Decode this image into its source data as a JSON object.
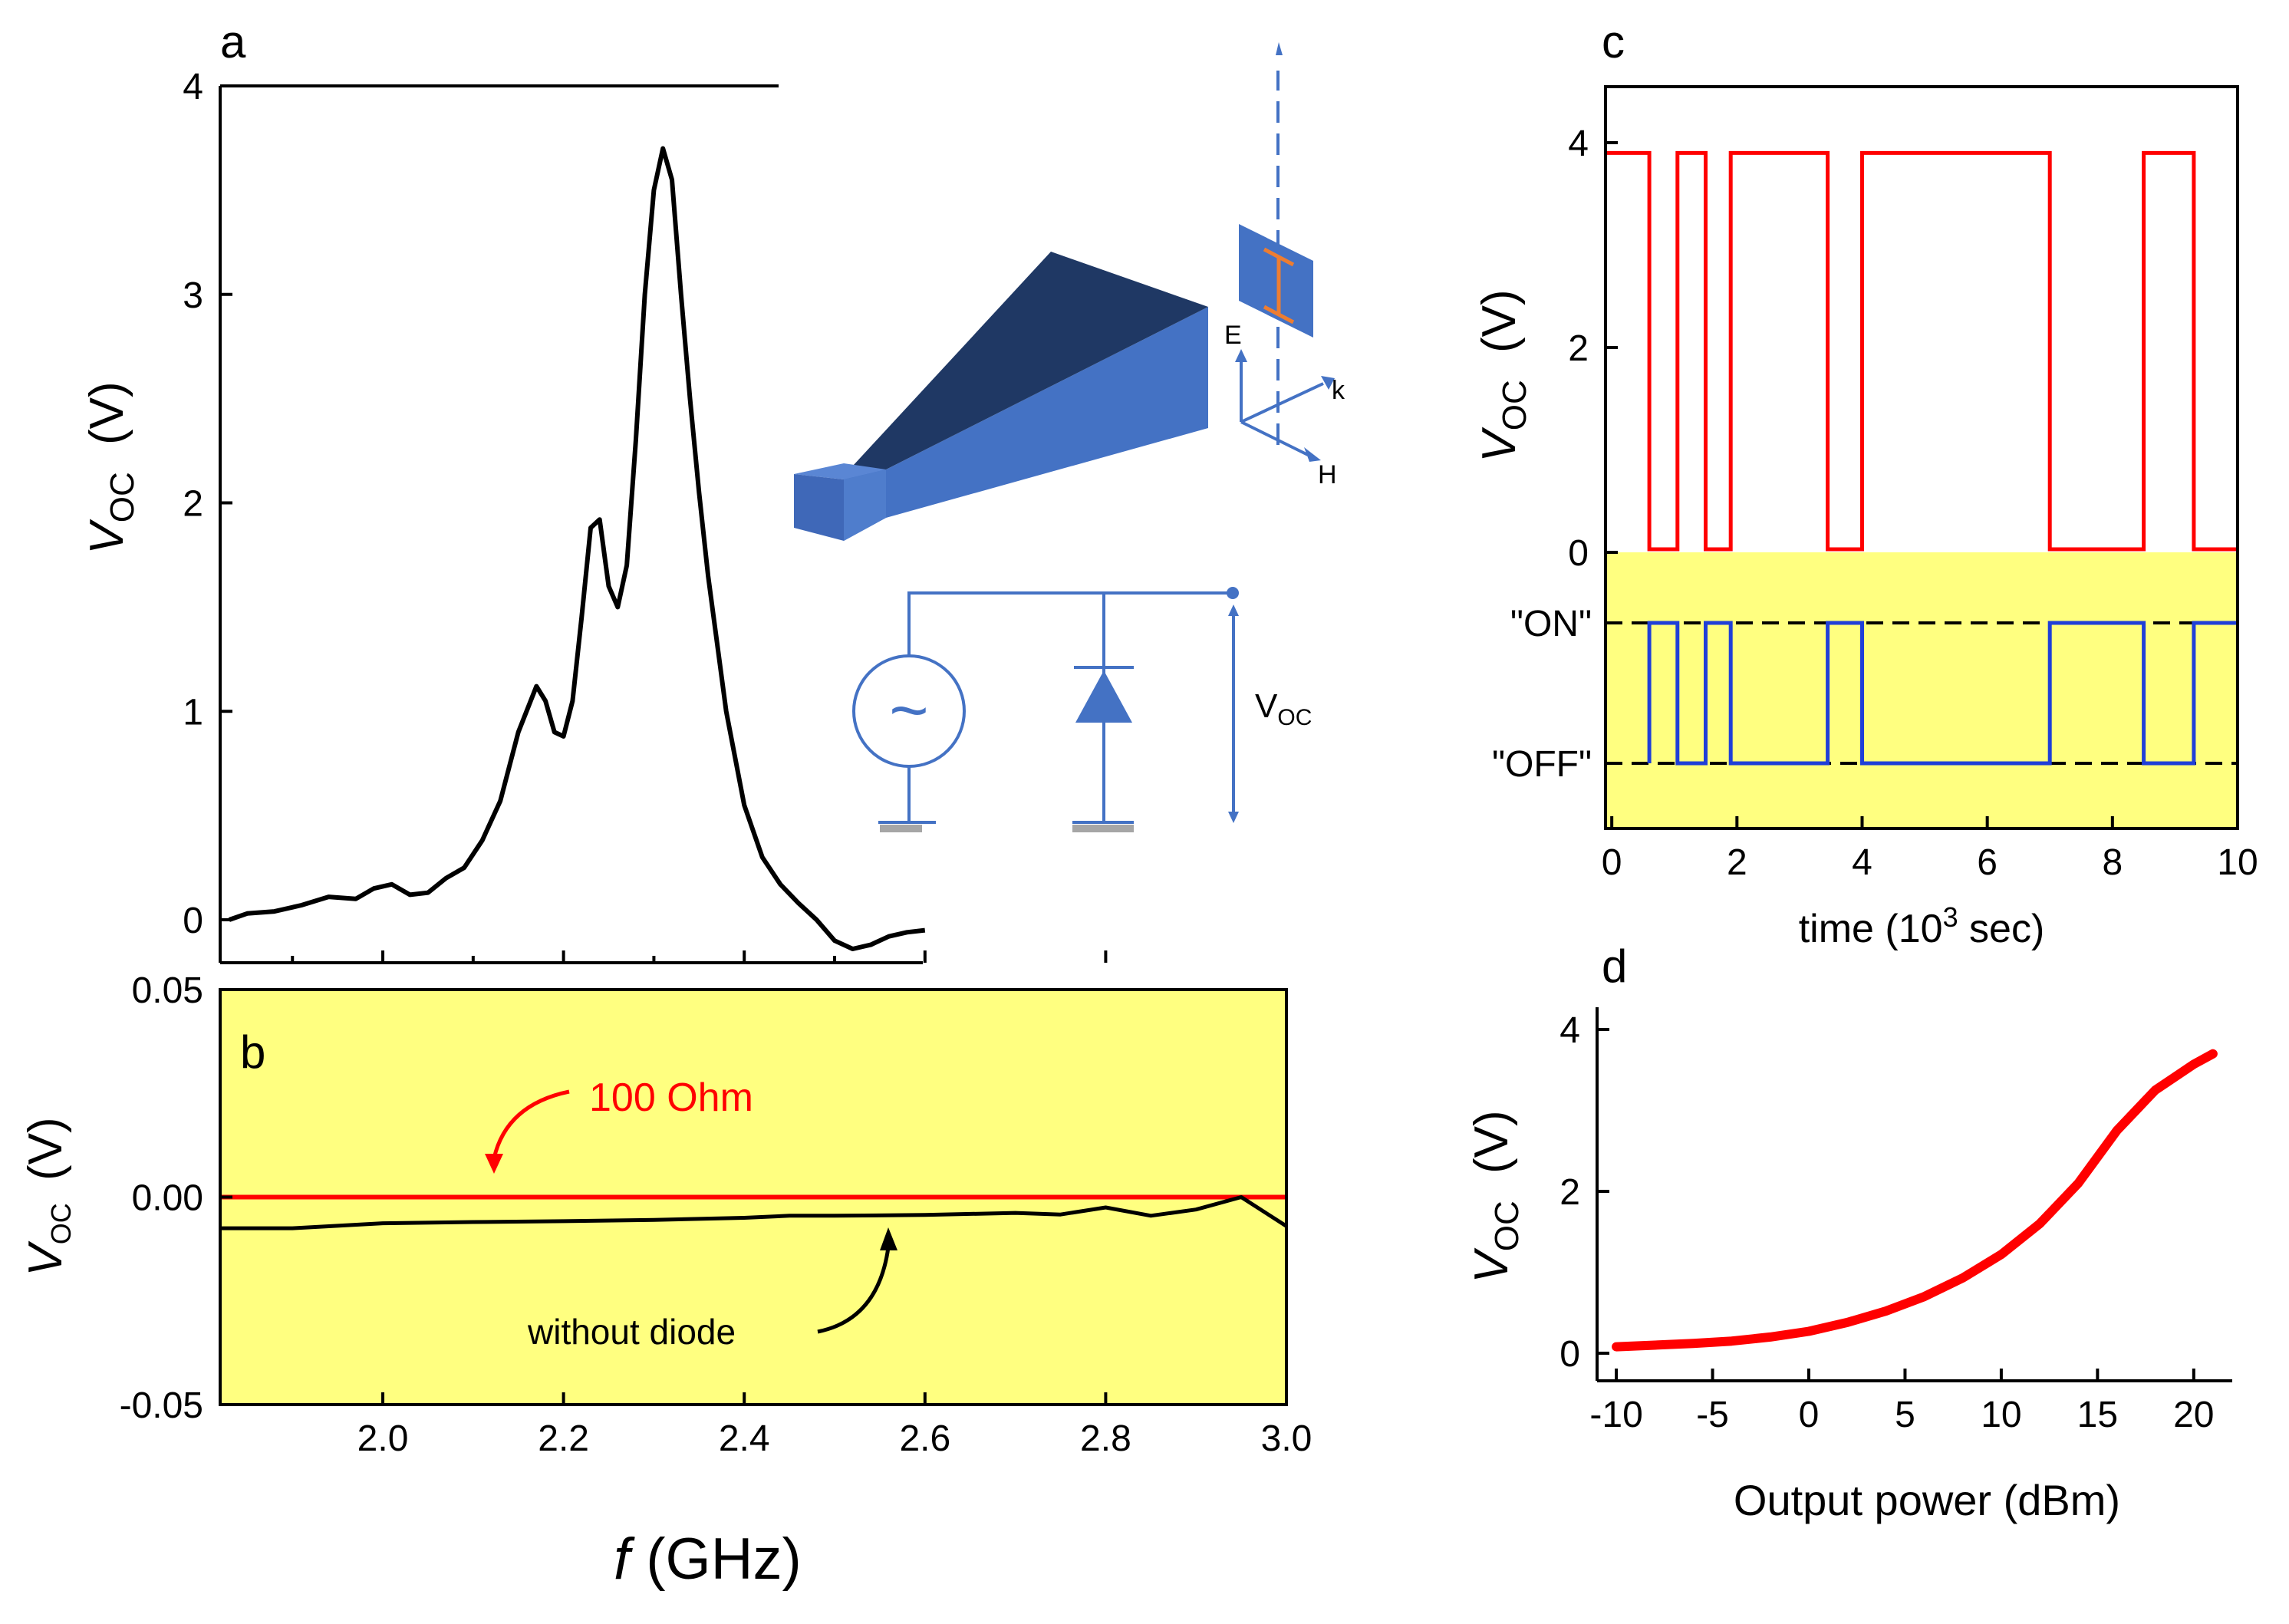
{
  "colors": {
    "red": "#ff0000",
    "blue": "#1f3fd8",
    "black": "#000000",
    "yellow": "#ffff80",
    "diagram_blue": "#4472c4",
    "diagram_dark": "#1f3864",
    "orange": "#ed7d31"
  },
  "panel_labels": {
    "a": "a",
    "b": "b",
    "c": "c",
    "d": "d"
  },
  "shared_xlabel": {
    "italic": "f",
    "rest": " (GHz)"
  },
  "inset": {
    "field_labels": {
      "E": "E",
      "k": "k",
      "H": "H"
    },
    "voltage_label": {
      "main": "V",
      "sub": "OC"
    },
    "source_symbol": "~"
  },
  "chart_data": [
    {
      "panel": "a",
      "type": "line",
      "xlim": [
        1.82,
        3.0
      ],
      "ylim": [
        -0.2,
        4.0
      ],
      "yticks": [
        0,
        1,
        2,
        3,
        4
      ],
      "ylabel": {
        "main": "V",
        "sub": "OC",
        "unit": "(V)"
      },
      "series": [
        {
          "color": "#000000",
          "x": [
            1.83,
            1.85,
            1.88,
            1.91,
            1.94,
            1.97,
            1.99,
            2.01,
            2.03,
            2.05,
            2.07,
            2.09,
            2.11,
            2.13,
            2.15,
            2.17,
            2.18,
            2.19,
            2.2,
            2.21,
            2.22,
            2.23,
            2.24,
            2.25,
            2.26,
            2.27,
            2.28,
            2.29,
            2.3,
            2.31,
            2.32,
            2.33,
            2.34,
            2.35,
            2.36,
            2.38,
            2.4,
            2.42,
            2.44,
            2.46,
            2.48,
            2.5,
            2.52,
            2.54,
            2.56,
            2.58,
            2.6
          ],
          "y": [
            0.0,
            0.03,
            0.04,
            0.07,
            0.11,
            0.1,
            0.15,
            0.17,
            0.12,
            0.13,
            0.2,
            0.25,
            0.38,
            0.57,
            0.9,
            1.12,
            1.05,
            0.9,
            0.88,
            1.05,
            1.45,
            1.88,
            1.92,
            1.6,
            1.5,
            1.7,
            2.3,
            3.0,
            3.5,
            3.7,
            3.55,
            3.0,
            2.5,
            2.05,
            1.65,
            1.0,
            0.55,
            0.3,
            0.17,
            0.08,
            0.0,
            -0.1,
            -0.14,
            -0.12,
            -0.08,
            -0.06,
            -0.05
          ]
        }
      ]
    },
    {
      "panel": "b",
      "type": "line",
      "xlim": [
        1.82,
        3.0
      ],
      "ylim": [
        -0.05,
        0.05
      ],
      "xticks": [
        2.0,
        2.2,
        2.4,
        2.6,
        2.8,
        3.0
      ],
      "xtick_labels": [
        "2.0",
        "2.2",
        "2.4",
        "2.6",
        "2.8",
        "3.0"
      ],
      "yticks": [
        -0.05,
        0.0,
        0.05
      ],
      "ytick_labels": [
        "-0.05",
        "0.00",
        "0.05"
      ],
      "ylabel": {
        "main": "V",
        "sub": "OC",
        "unit": "(V)"
      },
      "background": "#ffff80",
      "annotations": {
        "red": "100 Ohm",
        "black": "without  diode"
      },
      "series": [
        {
          "color": "#ff0000",
          "x": [
            1.82,
            3.0
          ],
          "y": [
            0.0,
            0.0
          ]
        },
        {
          "color": "#000000",
          "x": [
            1.82,
            1.9,
            2.0,
            2.1,
            2.2,
            2.3,
            2.4,
            2.45,
            2.5,
            2.6,
            2.7,
            2.75,
            2.8,
            2.85,
            2.9,
            2.95,
            3.0
          ],
          "y": [
            -0.0075,
            -0.0075,
            -0.0063,
            -0.006,
            -0.0058,
            -0.0055,
            -0.005,
            -0.0045,
            -0.0045,
            -0.0043,
            -0.0038,
            -0.0042,
            -0.0025,
            -0.0045,
            -0.003,
            0.0,
            -0.007
          ]
        }
      ]
    },
    {
      "panel": "c",
      "type": "line",
      "xlim": [
        -0.1,
        10.0
      ],
      "xticks": [
        0,
        2,
        4,
        6,
        8,
        10
      ],
      "xlabel": {
        "pre": "time (10",
        "sup": "3",
        "post": " sec)"
      },
      "ylim": [
        0,
        4.5
      ],
      "yticks": [
        0,
        2,
        4
      ],
      "ylabel": {
        "main": "V",
        "sub": "OC",
        "unit": "(V)"
      },
      "lower_levels": [
        "\"ON\"",
        "\"OFF\""
      ],
      "series": [
        {
          "color": "#ff0000",
          "x": [
            -0.1,
            0.6,
            0.6,
            1.05,
            1.05,
            1.5,
            1.5,
            1.9,
            1.9,
            3.45,
            3.45,
            4.0,
            4.0,
            7.0,
            7.0,
            8.5,
            8.5,
            9.3,
            9.3,
            10.0
          ],
          "y": [
            3.9,
            3.9,
            0.03,
            0.03,
            3.9,
            3.9,
            0.03,
            0.03,
            3.9,
            3.9,
            0.03,
            0.03,
            3.9,
            3.9,
            0.03,
            0.03,
            3.9,
            3.9,
            0.03,
            0.03
          ]
        },
        {
          "color": "#1f3fd8",
          "levels": [
            "ON",
            "OFF"
          ],
          "x": [
            0.6,
            0.6,
            1.05,
            1.05,
            1.5,
            1.5,
            1.9,
            1.9,
            3.45,
            3.45,
            4.0,
            4.0,
            7.0,
            7.0,
            8.5,
            8.5,
            9.3,
            9.3,
            10.0
          ],
          "y": [
            "OFF",
            "ON",
            "ON",
            "OFF",
            "OFF",
            "ON",
            "ON",
            "OFF",
            "OFF",
            "ON",
            "ON",
            "OFF",
            "OFF",
            "ON",
            "ON",
            "OFF",
            "OFF",
            "ON",
            "ON"
          ]
        }
      ]
    },
    {
      "panel": "d",
      "type": "line",
      "xlim": [
        -11,
        22
      ],
      "xticks": [
        -10,
        -5,
        0,
        5,
        10,
        15,
        20
      ],
      "xlabel": "Output power  (dBm)",
      "ylim": [
        -0.2,
        4.3
      ],
      "yticks": [
        0,
        2,
        4
      ],
      "ylabel": {
        "main": "V",
        "sub": "OC",
        "unit": "(V)"
      },
      "series": [
        {
          "color": "#ff0000",
          "x": [
            -10,
            -8,
            -6,
            -4,
            -2,
            0,
            2,
            4,
            6,
            8,
            10,
            12,
            14,
            16,
            18,
            20,
            21
          ],
          "y": [
            0.08,
            0.1,
            0.12,
            0.15,
            0.2,
            0.27,
            0.38,
            0.52,
            0.7,
            0.93,
            1.22,
            1.6,
            2.1,
            2.75,
            3.25,
            3.57,
            3.7
          ]
        }
      ]
    }
  ]
}
